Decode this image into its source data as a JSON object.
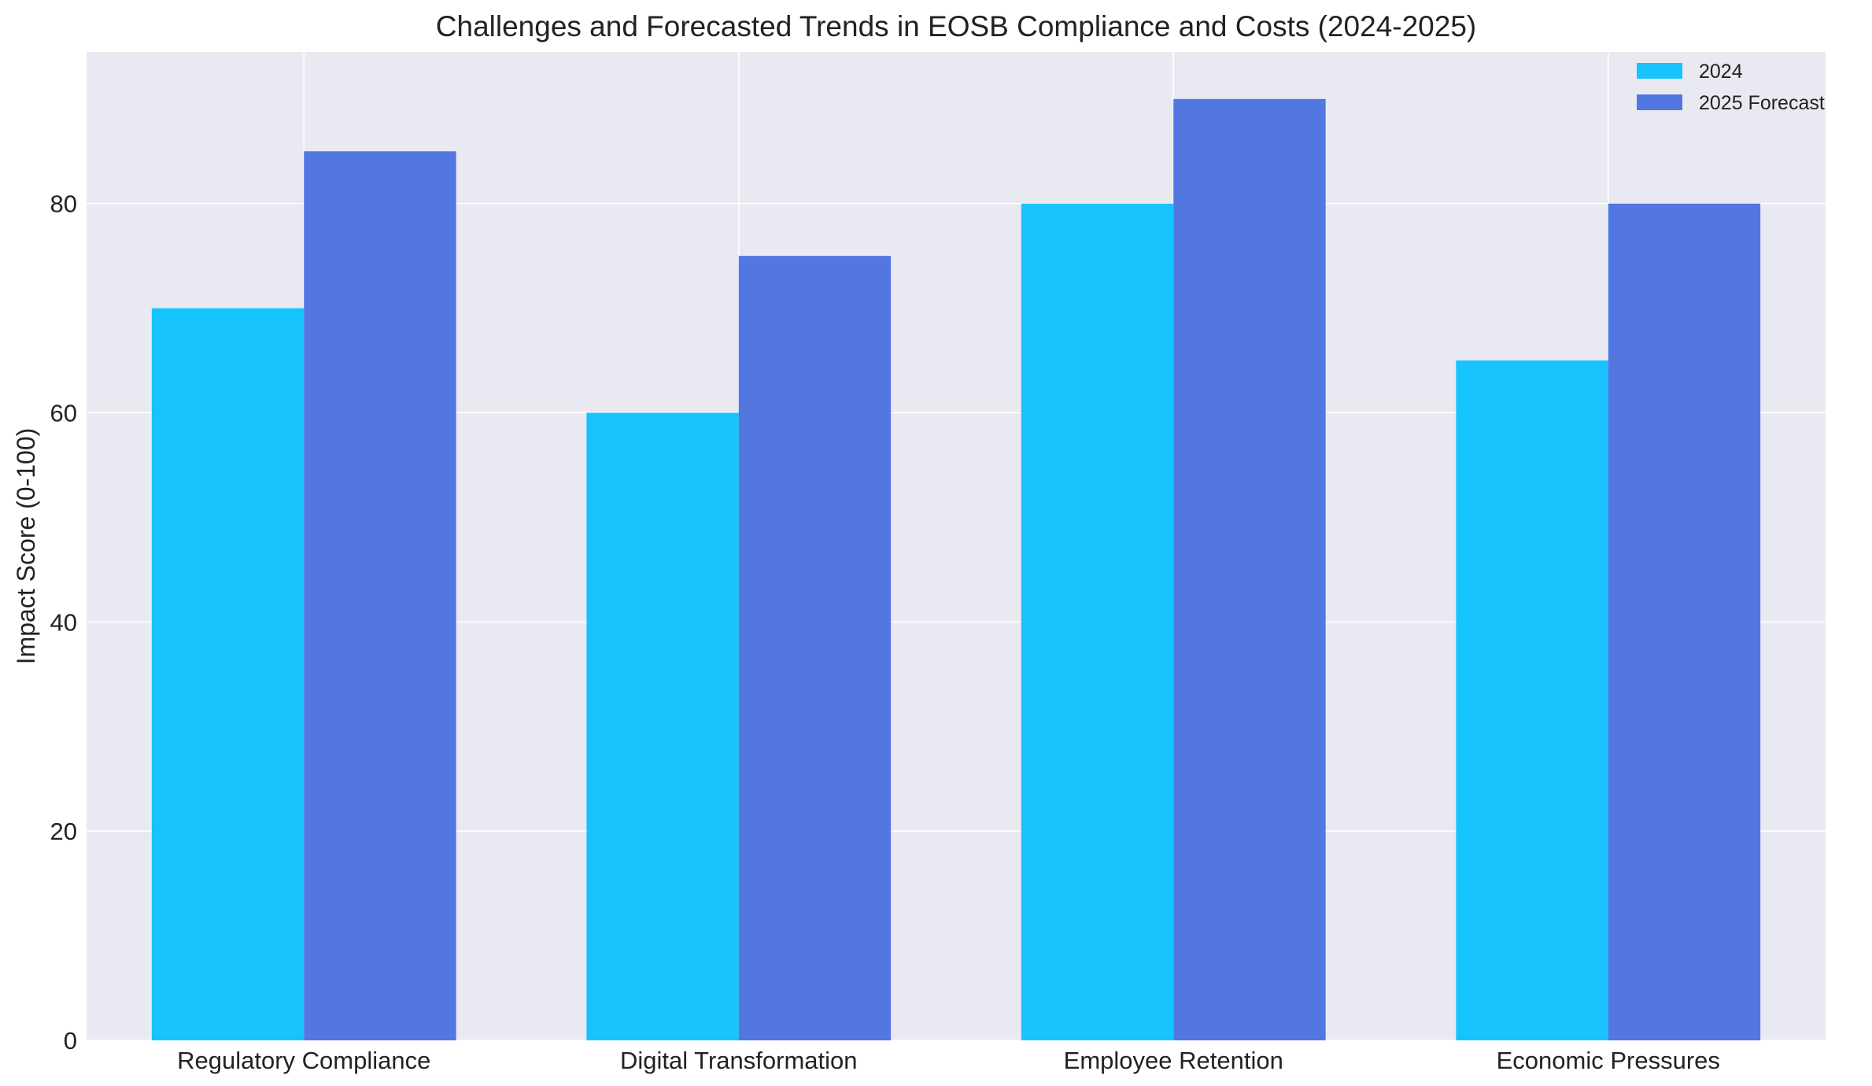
{
  "chart_data": {
    "type": "bar",
    "title": "Challenges and Forecasted Trends in EOSB Compliance and Costs (2024-2025)",
    "xlabel": "",
    "ylabel": "Impact Score (0-100)",
    "categories": [
      "Regulatory Compliance",
      "Digital Transformation",
      "Employee Retention",
      "Economic Pressures"
    ],
    "series": [
      {
        "name": "2024",
        "color": "#17c3fd",
        "values": [
          70,
          60,
          80,
          65
        ]
      },
      {
        "name": "2025 Forecast",
        "color": "#5277e1",
        "values": [
          85,
          75,
          90,
          80
        ]
      }
    ],
    "ylim": [
      0,
      94.5
    ],
    "yticks": [
      0,
      20,
      40,
      60,
      80
    ],
    "grid": true,
    "legend_position": "top-right",
    "background": "#e9e9f2",
    "grid_color": "#ffffff"
  }
}
